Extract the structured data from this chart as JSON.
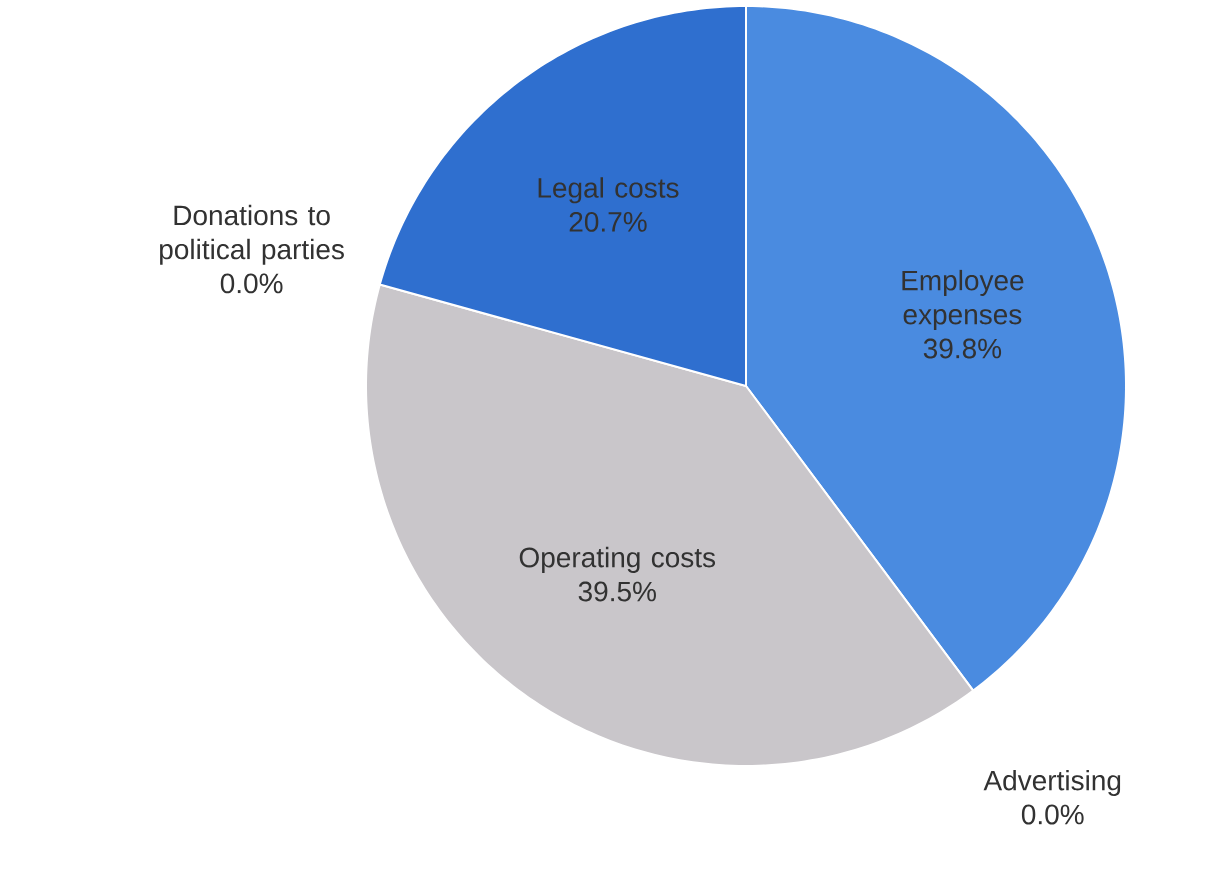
{
  "chart_data": {
    "type": "pie",
    "categories": [
      "Employee expenses",
      "Advertising",
      "Operating costs",
      "Donations to political parties",
      "Legal costs"
    ],
    "values": [
      39.8,
      0.0,
      39.5,
      0.0,
      20.7
    ],
    "value_labels": [
      "39.8%",
      "0.0%",
      "39.5%",
      "0.0%",
      "20.7%"
    ],
    "colors": [
      "#4a8be0",
      "#4a8be0",
      "#c9c6ca",
      "#c9c6ca",
      "#2f6fcf"
    ]
  }
}
